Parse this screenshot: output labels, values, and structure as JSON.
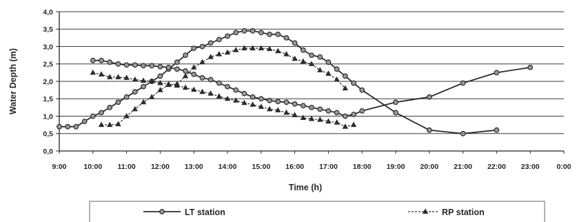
{
  "chart_data": {
    "type": "line",
    "xlabel": "Time (h)",
    "ylabel": "Water Depth (m)",
    "xlim": [
      "9:00",
      "0:00"
    ],
    "ylim": [
      0,
      4
    ],
    "x_ticks": [
      "9:00",
      "10:00",
      "11:00",
      "12:00",
      "13:00",
      "14:00",
      "15:00",
      "16:00",
      "17:00",
      "18:00",
      "19:00",
      "20:00",
      "21:00",
      "22:00",
      "23:00",
      "0:00"
    ],
    "y_ticks": [
      "0,0",
      "0,5",
      "1,0",
      "1,5",
      "2,0",
      "2,5",
      "3,0",
      "3,5",
      "4,0"
    ],
    "grid": "horizontal",
    "legend_position": "bottom",
    "series": [
      {
        "name": "LT station",
        "marker": "circle",
        "line": "solid",
        "color": "#2b2b2b",
        "marker_fill": "#9a9a9a",
        "curves": [
          {
            "x": [
              "9:00",
              "9:15",
              "9:30",
              "9:45",
              "10:00",
              "10:15",
              "10:30",
              "10:45",
              "11:00",
              "11:15",
              "11:30",
              "11:45",
              "12:00",
              "12:15",
              "12:30",
              "12:45",
              "13:00",
              "13:15",
              "13:30",
              "13:45",
              "14:00",
              "14:15",
              "14:30",
              "14:45",
              "15:00",
              "15:15",
              "15:30",
              "15:45",
              "16:00",
              "16:15",
              "16:30",
              "16:45",
              "17:00",
              "17:15",
              "17:30",
              "17:45",
              "18:00",
              "19:00",
              "20:00",
              "21:00",
              "22:00"
            ],
            "y": [
              0.7,
              0.7,
              0.7,
              0.85,
              1.0,
              1.1,
              1.25,
              1.4,
              1.55,
              1.7,
              1.85,
              2.0,
              2.15,
              2.35,
              2.55,
              2.75,
              2.95,
              3.0,
              3.1,
              3.2,
              3.3,
              3.4,
              3.45,
              3.45,
              3.4,
              3.35,
              3.35,
              3.25,
              3.1,
              2.9,
              2.75,
              2.7,
              2.55,
              2.35,
              2.15,
              1.95,
              1.75,
              1.1,
              0.6,
              0.5,
              0.6
            ]
          },
          {
            "x": [
              "10:00",
              "10:15",
              "10:30",
              "10:45",
              "11:00",
              "11:15",
              "11:30",
              "11:45",
              "12:00",
              "12:15",
              "12:30",
              "12:45",
              "13:00",
              "13:15",
              "13:30",
              "13:45",
              "14:00",
              "14:15",
              "14:30",
              "14:45",
              "15:00",
              "15:15",
              "15:30",
              "15:45",
              "16:00",
              "16:15",
              "16:30",
              "16:45",
              "17:00",
              "17:15",
              "17:30",
              "17:45",
              "18:00",
              "19:00",
              "20:00",
              "21:00",
              "22:00",
              "23:00"
            ],
            "y": [
              2.6,
              2.6,
              2.55,
              2.5,
              2.47,
              2.47,
              2.45,
              2.45,
              2.42,
              2.4,
              2.35,
              2.3,
              2.2,
              2.1,
              2.05,
              1.95,
              1.85,
              1.75,
              1.65,
              1.55,
              1.5,
              1.45,
              1.42,
              1.4,
              1.35,
              1.3,
              1.25,
              1.2,
              1.15,
              1.1,
              1.0,
              1.05,
              1.15,
              1.4,
              1.55,
              1.95,
              2.25,
              2.4
            ]
          }
        ]
      },
      {
        "name": "RP station",
        "marker": "triangle",
        "line": "dashed",
        "color": "#2b2b2b",
        "marker_fill": "#2b2b2b",
        "curves": [
          {
            "x": [
              "10:00",
              "10:15",
              "10:30",
              "10:45",
              "11:00",
              "11:15",
              "11:30",
              "11:45",
              "12:00",
              "12:15",
              "12:30",
              "12:45",
              "13:00",
              "13:15",
              "13:30",
              "13:45",
              "14:00",
              "14:15",
              "14:30",
              "14:45",
              "15:00",
              "15:15",
              "15:30",
              "15:45",
              "16:00",
              "16:15",
              "16:30",
              "16:45",
              "17:00",
              "17:15",
              "17:30",
              "17:45"
            ],
            "y": [
              2.25,
              2.2,
              2.12,
              2.12,
              2.1,
              2.05,
              2.02,
              2.0,
              1.95,
              1.92,
              1.88,
              1.82,
              1.76,
              1.7,
              1.65,
              1.57,
              1.5,
              1.45,
              1.38,
              1.33,
              1.27,
              1.2,
              1.17,
              1.1,
              1.03,
              0.95,
              0.92,
              0.9,
              0.85,
              0.82,
              0.7,
              0.75
            ]
          },
          {
            "x": [
              "10:15",
              "10:30",
              "10:45",
              "11:00",
              "11:15",
              "11:30",
              "11:45",
              "12:00",
              "12:15",
              "12:30",
              "12:45",
              "13:00",
              "13:15",
              "13:30",
              "13:45",
              "14:00",
              "14:15",
              "14:30",
              "14:45",
              "15:00",
              "15:15",
              "15:30",
              "15:45",
              "16:00",
              "16:15",
              "16:30",
              "16:45",
              "17:00",
              "17:15",
              "17:30"
            ],
            "y": [
              0.75,
              0.75,
              0.77,
              1.0,
              1.2,
              1.4,
              1.55,
              1.75,
              1.9,
              1.92,
              2.15,
              2.4,
              2.55,
              2.7,
              2.78,
              2.83,
              2.9,
              2.95,
              2.95,
              2.95,
              2.93,
              2.87,
              2.78,
              2.65,
              2.57,
              2.5,
              2.32,
              2.22,
              2.05,
              1.8
            ]
          }
        ]
      }
    ]
  }
}
